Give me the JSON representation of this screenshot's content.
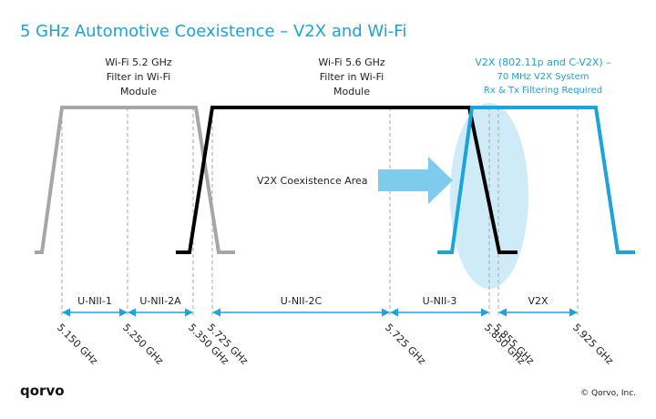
{
  "header": {
    "title": "5 GHz Automotive Coexistence – V2X and Wi-Fi"
  },
  "filters": [
    {
      "lines": [
        "Wi-Fi 5.2 GHz",
        "Filter in Wi-Fi",
        "Module"
      ]
    },
    {
      "lines": [
        "Wi-Fi 5.6 GHz",
        "Filter in Wi-Fi",
        "Module"
      ]
    },
    {
      "lines": [
        "V2X (802.11p and C-V2X) –",
        "70 MHz V2X System",
        "Rx & Tx Filtering Required"
      ]
    }
  ],
  "coexistence_label": "V2X Coexistence Area",
  "bands": [
    "U-NII-1",
    "U-NII-2A",
    "U-NII-2C",
    "U-NII-3",
    "V2X"
  ],
  "frequencies": [
    "5.150 GHz",
    "5.250 GHz",
    "5.350 GHz",
    "5.725 GHz",
    "5.725 GHz",
    "5.850 GHz",
    "5.855 GHz",
    "5.925 GHz"
  ],
  "footer": {
    "logo": "qorvo",
    "copyright": "© Qorvo, Inc."
  }
}
